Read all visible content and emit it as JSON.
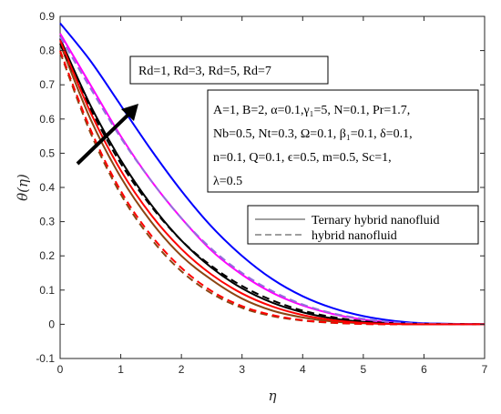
{
  "chart_data": {
    "type": "line",
    "xlabel": "η",
    "ylabel": "θ(η)",
    "xlim": [
      0,
      7
    ],
    "ylim": [
      -0.1,
      0.9
    ],
    "xticks": [
      "0",
      "1",
      "2",
      "3",
      "4",
      "5",
      "6",
      "7"
    ],
    "yticks": [
      "-0.1",
      "0",
      "0.1",
      "0.2",
      "0.3",
      "0.4",
      "0.5",
      "0.6",
      "0.7",
      "0.8",
      "0.9"
    ],
    "grid": false,
    "legend_placement": "right",
    "legend": [
      {
        "label": "Ternary hybrid nanofluid",
        "style": "solid"
      },
      {
        "label": "hybrid nanofluid",
        "style": "dashed"
      }
    ],
    "annotation_box": "Rd=1, Rd=3, Rd=5, Rd=7",
    "parameter_box": [
      "A=1, B=2, α=0.1,γ₁=5, N=0.1, Pr=1.7,",
      "Nb=0.5, Nt=0.3, Ω=0.1, β₁=0.1, δ=0.1,",
      "n=0.1, Q=0.1, ϵ=0.5, m=0.5, Sc=1,",
      "λ=0.5"
    ],
    "arrow_direction": "increasing Rd",
    "series": [
      {
        "style": "solid",
        "color": "#8B4513",
        "x": [
          0,
          0.5,
          1,
          1.5,
          2,
          2.5,
          3,
          3.5,
          4,
          4.5,
          5,
          5.5,
          6,
          7
        ],
        "y": [
          0.82,
          0.6,
          0.43,
          0.3,
          0.2,
          0.13,
          0.075,
          0.04,
          0.02,
          0.008,
          0.003,
          0.001,
          0.0,
          0.0
        ]
      },
      {
        "style": "solid",
        "color": "#000000",
        "x": [
          0,
          0.5,
          1,
          1.5,
          2,
          2.5,
          3,
          3.5,
          4,
          4.5,
          5,
          5.5,
          6,
          7
        ],
        "y": [
          0.835,
          0.64,
          0.48,
          0.35,
          0.245,
          0.165,
          0.105,
          0.063,
          0.035,
          0.017,
          0.007,
          0.002,
          0.0,
          0.0
        ]
      },
      {
        "style": "solid",
        "color": "#FF00FF",
        "x": [
          0,
          0.5,
          1,
          1.5,
          2,
          2.5,
          3,
          3.5,
          4,
          4.5,
          5,
          5.5,
          6,
          7
        ],
        "y": [
          0.85,
          0.7,
          0.55,
          0.42,
          0.31,
          0.215,
          0.145,
          0.092,
          0.055,
          0.03,
          0.014,
          0.005,
          0.001,
          0.0
        ]
      },
      {
        "style": "solid",
        "color": "#0000FF",
        "x": [
          0,
          0.5,
          1,
          1.5,
          2,
          2.5,
          3,
          3.5,
          4,
          4.5,
          5,
          5.5,
          6,
          7
        ],
        "y": [
          0.88,
          0.77,
          0.64,
          0.51,
          0.39,
          0.285,
          0.2,
          0.132,
          0.082,
          0.047,
          0.024,
          0.01,
          0.003,
          0.0
        ]
      },
      {
        "style": "dashed",
        "color": "#8B4513",
        "x": [
          0,
          0.5,
          1,
          1.5,
          2,
          2.5,
          3,
          3.5,
          4,
          4.5,
          5,
          5.5,
          6,
          7
        ],
        "y": [
          0.795,
          0.56,
          0.38,
          0.25,
          0.155,
          0.09,
          0.048,
          0.024,
          0.011,
          0.004,
          0.001,
          0.0,
          0.0,
          0.0
        ]
      },
      {
        "style": "dashed",
        "color": "#FF0000",
        "x": [
          0,
          0.5,
          1,
          1.5,
          2,
          2.5,
          3,
          3.5,
          4,
          4.5,
          5,
          5.5,
          6,
          7
        ],
        "y": [
          0.8,
          0.57,
          0.39,
          0.26,
          0.165,
          0.097,
          0.053,
          0.027,
          0.012,
          0.005,
          0.001,
          0.0,
          0.0,
          0.0
        ]
      },
      {
        "style": "dashed",
        "color": "#000000",
        "x": [
          0,
          0.5,
          1,
          1.5,
          2,
          2.5,
          3,
          3.5,
          4,
          4.5,
          5,
          5.5,
          6,
          7
        ],
        "y": [
          0.82,
          0.63,
          0.47,
          0.345,
          0.245,
          0.17,
          0.112,
          0.07,
          0.04,
          0.021,
          0.009,
          0.003,
          0.001,
          0.0
        ]
      },
      {
        "style": "dashed",
        "color": "#9370DB",
        "x": [
          0,
          0.5,
          1,
          1.5,
          2,
          2.5,
          3,
          3.5,
          4,
          4.5,
          5,
          5.5,
          6,
          7
        ],
        "y": [
          0.84,
          0.69,
          0.545,
          0.42,
          0.31,
          0.22,
          0.15,
          0.097,
          0.058,
          0.032,
          0.016,
          0.006,
          0.002,
          0.0
        ]
      },
      {
        "style": "solid",
        "color": "#FF0000",
        "x": [
          0,
          0.5,
          1,
          1.5,
          2,
          2.5,
          3,
          3.5,
          4,
          4.5,
          5,
          5.5,
          6,
          7
        ],
        "y": [
          0.83,
          0.62,
          0.45,
          0.32,
          0.22,
          0.145,
          0.09,
          0.052,
          0.027,
          0.012,
          0.004,
          0.001,
          0.0,
          0.0
        ]
      }
    ]
  }
}
